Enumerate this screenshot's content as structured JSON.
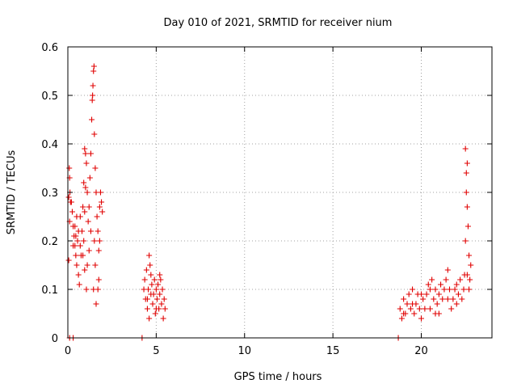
{
  "chart_data": {
    "type": "scatter",
    "title": "Day 010 of 2021, SRMTID for receiver nium",
    "xlabel": "GPS time / hours",
    "ylabel": "SRMTID / TECUs",
    "xlim": [
      0,
      24
    ],
    "ylim": [
      0,
      0.6
    ],
    "xticks": [
      0,
      5,
      10,
      15,
      20
    ],
    "xtick_labels": [
      "0",
      "5",
      "10",
      "15",
      "20"
    ],
    "yticks": [
      0,
      0.1,
      0.2,
      0.3,
      0.4,
      0.5,
      0.6
    ],
    "ytick_labels": [
      "0",
      "0.1",
      "0.2",
      "0.3",
      "0.4",
      "0.5",
      "0.6"
    ],
    "grid": true,
    "marker": "+",
    "series_color": "#e00000",
    "series": [
      {
        "name": "SRMTID",
        "points": [
          [
            0.05,
            0.29
          ],
          [
            0.08,
            0.35
          ],
          [
            0.1,
            0.33
          ],
          [
            0.12,
            0.3
          ],
          [
            0.15,
            0.28
          ],
          [
            0.1,
            0.24
          ],
          [
            0.05,
            0.16
          ],
          [
            0.2,
            0.28
          ],
          [
            0.25,
            0.26
          ],
          [
            0.3,
            0.23
          ],
          [
            0.35,
            0.21
          ],
          [
            0.4,
            0.19
          ],
          [
            0.45,
            0.17
          ],
          [
            0.5,
            0.15
          ],
          [
            0.55,
            0.2
          ],
          [
            0.6,
            0.13
          ],
          [
            0.65,
            0.11
          ],
          [
            0.5,
            0.25
          ],
          [
            0.45,
            0.21
          ],
          [
            0.7,
            0.19
          ],
          [
            0.75,
            0.17
          ],
          [
            0.8,
            0.22
          ],
          [
            0.85,
            0.27
          ],
          [
            0.9,
            0.32
          ],
          [
            0.95,
            0.39
          ],
          [
            1.0,
            0.38
          ],
          [
            1.05,
            0.36
          ],
          [
            1.0,
            0.31
          ],
          [
            0.95,
            0.26
          ],
          [
            0.9,
            0.2
          ],
          [
            1.1,
            0.3
          ],
          [
            1.15,
            0.24
          ],
          [
            1.1,
            0.15
          ],
          [
            1.05,
            0.1
          ],
          [
            1.2,
            0.27
          ],
          [
            1.25,
            0.33
          ],
          [
            1.3,
            0.38
          ],
          [
            1.35,
            0.45
          ],
          [
            1.38,
            0.49
          ],
          [
            1.4,
            0.5
          ],
          [
            1.42,
            0.52
          ],
          [
            1.45,
            0.55
          ],
          [
            1.48,
            0.56
          ],
          [
            1.5,
            0.42
          ],
          [
            1.55,
            0.35
          ],
          [
            1.6,
            0.3
          ],
          [
            1.5,
            0.2
          ],
          [
            1.45,
            0.1
          ],
          [
            1.55,
            0.15
          ],
          [
            1.65,
            0.25
          ],
          [
            1.7,
            0.22
          ],
          [
            1.75,
            0.18
          ],
          [
            1.6,
            0.07
          ],
          [
            1.7,
            0.1
          ],
          [
            1.8,
            0.27
          ],
          [
            1.85,
            0.3
          ],
          [
            1.9,
            0.28
          ],
          [
            1.95,
            0.26
          ],
          [
            1.8,
            0.2
          ],
          [
            1.75,
            0.12
          ],
          [
            1.2,
            0.18
          ],
          [
            1.3,
            0.22
          ],
          [
            0.6,
            0.22
          ],
          [
            0.7,
            0.25
          ],
          [
            0.4,
            0.23
          ],
          [
            0.3,
            0.19
          ],
          [
            0.85,
            0.17
          ],
          [
            0.95,
            0.14
          ],
          [
            4.3,
            0.1
          ],
          [
            4.35,
            0.12
          ],
          [
            4.4,
            0.08
          ],
          [
            4.45,
            0.14
          ],
          [
            4.5,
            0.06
          ],
          [
            4.55,
            0.1
          ],
          [
            4.6,
            0.17
          ],
          [
            4.65,
            0.15
          ],
          [
            4.7,
            0.13
          ],
          [
            4.75,
            0.11
          ],
          [
            4.8,
            0.07
          ],
          [
            4.85,
            0.09
          ],
          [
            4.9,
            0.12
          ],
          [
            4.95,
            0.05
          ],
          [
            5.0,
            0.1
          ],
          [
            5.05,
            0.08
          ],
          [
            5.1,
            0.11
          ],
          [
            5.15,
            0.06
          ],
          [
            5.2,
            0.09
          ],
          [
            5.25,
            0.12
          ],
          [
            5.3,
            0.07
          ],
          [
            5.35,
            0.1
          ],
          [
            5.4,
            0.04
          ],
          [
            5.45,
            0.08
          ],
          [
            5.5,
            0.06
          ],
          [
            4.6,
            0.04
          ],
          [
            4.7,
            0.09
          ],
          [
            5.0,
            0.06
          ],
          [
            5.2,
            0.13
          ],
          [
            4.5,
            0.08
          ],
          [
            18.8,
            0.06
          ],
          [
            18.9,
            0.04
          ],
          [
            19.0,
            0.08
          ],
          [
            19.1,
            0.05
          ],
          [
            19.2,
            0.07
          ],
          [
            19.3,
            0.09
          ],
          [
            19.4,
            0.06
          ],
          [
            19.5,
            0.1
          ],
          [
            19.6,
            0.05
          ],
          [
            19.7,
            0.07
          ],
          [
            19.8,
            0.09
          ],
          [
            19.9,
            0.06
          ],
          [
            20.0,
            0.04
          ],
          [
            20.1,
            0.08
          ],
          [
            20.2,
            0.06
          ],
          [
            20.3,
            0.09
          ],
          [
            20.4,
            0.11
          ],
          [
            20.5,
            0.1
          ],
          [
            20.6,
            0.12
          ],
          [
            20.7,
            0.08
          ],
          [
            20.8,
            0.05
          ],
          [
            20.9,
            0.07
          ],
          [
            21.0,
            0.09
          ],
          [
            21.1,
            0.11
          ],
          [
            21.2,
            0.08
          ],
          [
            21.3,
            0.1
          ],
          [
            21.4,
            0.12
          ],
          [
            21.5,
            0.14
          ],
          [
            21.6,
            0.1
          ],
          [
            21.7,
            0.06
          ],
          [
            21.8,
            0.08
          ],
          [
            21.9,
            0.1
          ],
          [
            22.0,
            0.07
          ],
          [
            22.1,
            0.09
          ],
          [
            22.2,
            0.12
          ],
          [
            22.3,
            0.08
          ],
          [
            22.4,
            0.1
          ],
          [
            22.45,
            0.13
          ],
          [
            22.5,
            0.2
          ],
          [
            22.55,
            0.3
          ],
          [
            22.6,
            0.36
          ],
          [
            22.5,
            0.39
          ],
          [
            22.55,
            0.34
          ],
          [
            22.6,
            0.27
          ],
          [
            22.65,
            0.23
          ],
          [
            22.7,
            0.17
          ],
          [
            22.75,
            0.12
          ],
          [
            22.8,
            0.15
          ],
          [
            22.7,
            0.1
          ],
          [
            22.6,
            0.13
          ],
          [
            19.5,
            0.07
          ],
          [
            20.0,
            0.09
          ],
          [
            20.5,
            0.06
          ],
          [
            21.0,
            0.05
          ],
          [
            21.5,
            0.08
          ],
          [
            22.0,
            0.11
          ],
          [
            19.0,
            0.05
          ],
          [
            20.8,
            0.1
          ],
          [
            0.1,
            0.0
          ],
          [
            0.3,
            0.0
          ],
          [
            4.2,
            0.0
          ],
          [
            18.7,
            0.0
          ]
        ]
      }
    ]
  }
}
